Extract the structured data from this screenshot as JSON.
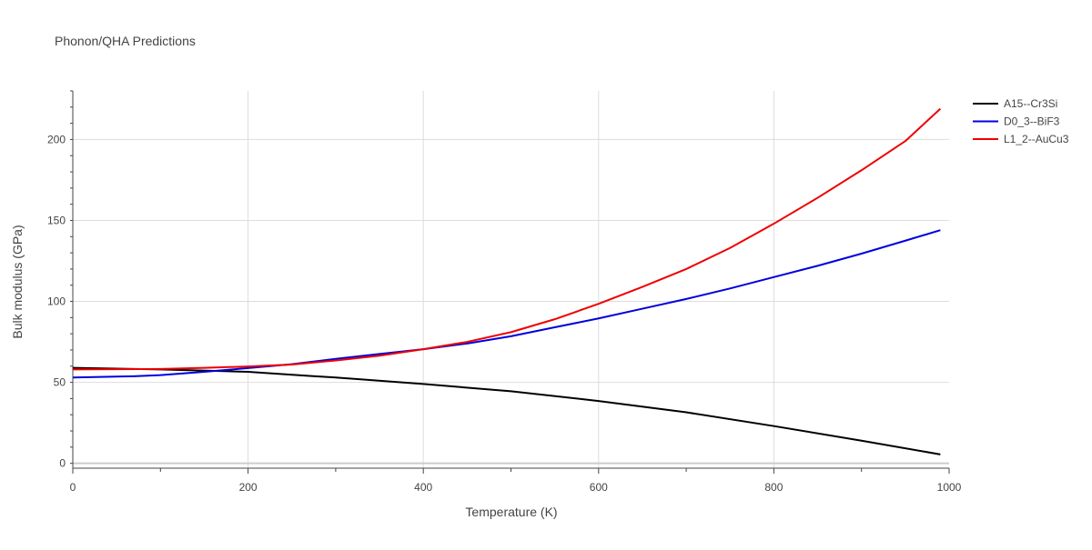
{
  "chart_data": {
    "type": "line",
    "title": "Phonon/QHA Predictions",
    "xlabel": "Temperature (K)",
    "ylabel": "Bulk modulus (GPa)",
    "xlim": [
      0,
      1000
    ],
    "ylim": [
      -3,
      230
    ],
    "x_ticks": [
      0,
      200,
      400,
      600,
      800,
      1000
    ],
    "y_ticks": [
      0,
      50,
      100,
      150,
      200
    ],
    "grid": true,
    "legend_position": "top-right",
    "series": [
      {
        "name": "A15--Cr3Si",
        "color": "#000000",
        "x": [
          0,
          100,
          200,
          270,
          300,
          400,
          500,
          600,
          700,
          800,
          900,
          990
        ],
        "y": [
          59,
          58,
          56.5,
          54,
          53,
          49,
          44.5,
          38.5,
          31.5,
          23,
          14,
          5.5
        ]
      },
      {
        "name": "D0_3--BiF3",
        "color": "#0000dd",
        "x": [
          0,
          70,
          100,
          150,
          200,
          250,
          300,
          350,
          400,
          450,
          500,
          550,
          600,
          650,
          700,
          750,
          800,
          850,
          900,
          950,
          990
        ],
        "y": [
          53,
          53.8,
          54.5,
          56.5,
          58.8,
          61.2,
          64.5,
          67.5,
          70.5,
          74,
          78.5,
          84,
          89.5,
          95.5,
          101.5,
          108,
          115,
          122,
          129.5,
          137.5,
          144
        ]
      },
      {
        "name": "L1_2--AuCu3",
        "color": "#ee0000",
        "x": [
          0,
          100,
          150,
          200,
          250,
          300,
          350,
          400,
          450,
          500,
          550,
          600,
          650,
          700,
          750,
          800,
          850,
          900,
          950,
          990
        ],
        "y": [
          58,
          58.3,
          59,
          59.8,
          61,
          63.5,
          66.5,
          70.5,
          75,
          81,
          89,
          98.5,
          109,
          120,
          133,
          148,
          164,
          181,
          199,
          219
        ]
      }
    ]
  }
}
